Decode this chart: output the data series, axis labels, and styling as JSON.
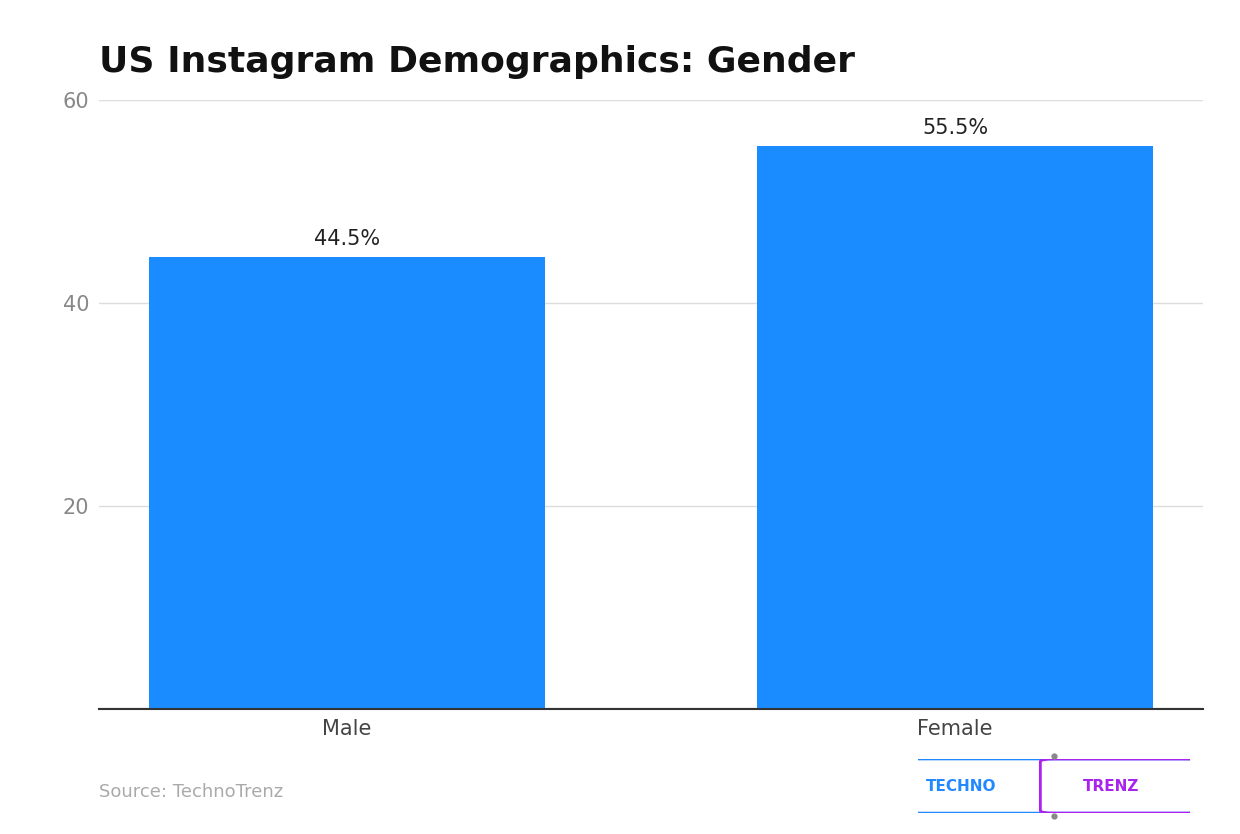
{
  "title": "US Instagram Demographics: Gender",
  "categories": [
    "Male",
    "Female"
  ],
  "values": [
    44.5,
    55.5
  ],
  "labels": [
    "44.5%",
    "55.5%"
  ],
  "bar_color": "#1a8cff",
  "ylim": [
    0,
    60
  ],
  "yticks": [
    20,
    40,
    60
  ],
  "background_color": "#ffffff",
  "title_fontsize": 26,
  "title_fontweight": "bold",
  "tick_fontsize": 15,
  "label_fontsize": 15,
  "source_text": "Source: TechnoTrenz",
  "source_color": "#aaaaaa",
  "grid_color": "#dddddd",
  "bar_width": 0.65,
  "figsize": [
    12.4,
    8.34
  ],
  "dpi": 100
}
